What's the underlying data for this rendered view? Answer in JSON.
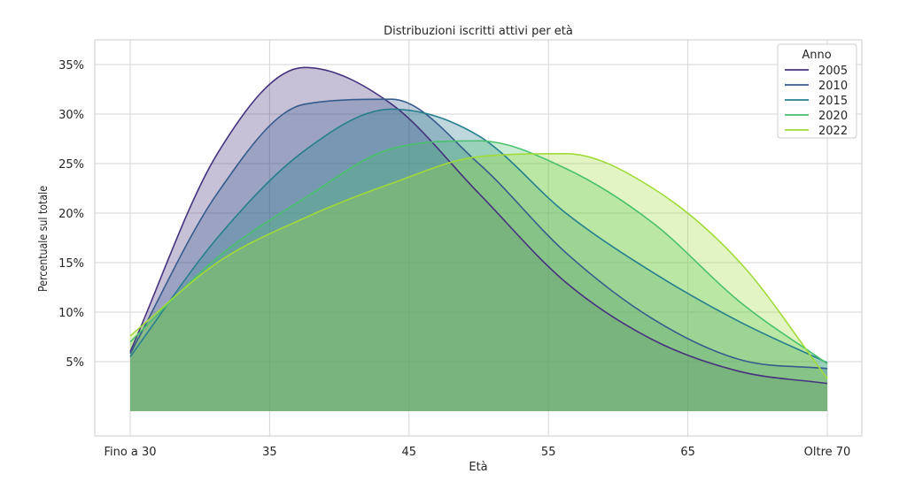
{
  "chart_data": {
    "type": "area",
    "title": "Distribuzioni iscritti attivi per età",
    "xlabel": "Età",
    "ylabel": "Percentuale sul totale",
    "x": [
      30,
      35,
      40,
      45,
      50,
      55,
      60,
      65,
      70
    ],
    "xlim": [
      30,
      70
    ],
    "ylim": [
      -2.5,
      37.5
    ],
    "x_ticks": [
      {
        "value": 30,
        "label": "Fino a 30"
      },
      {
        "value": 38,
        "label": "35"
      },
      {
        "value": 46,
        "label": "45"
      },
      {
        "value": 54,
        "label": "55"
      },
      {
        "value": 62,
        "label": "65"
      },
      {
        "value": 70,
        "label": "Oltre 70"
      }
    ],
    "y_ticks": [
      {
        "value": 5,
        "label": "5%"
      },
      {
        "value": 10,
        "label": "10%"
      },
      {
        "value": 15,
        "label": "15%"
      },
      {
        "value": 20,
        "label": "20%"
      },
      {
        "value": 25,
        "label": "25%"
      },
      {
        "value": 30,
        "label": "30%"
      },
      {
        "value": 35,
        "label": "35%"
      }
    ],
    "grid": true,
    "legend": {
      "title": "Anno",
      "position": "top-right"
    },
    "series": [
      {
        "name": "2005",
        "color": "#46327e",
        "values": [
          6.0,
          26.0,
          34.7,
          31.0,
          22.0,
          13.0,
          7.2,
          4.0,
          2.8
        ]
      },
      {
        "name": "2010",
        "color": "#365c8d",
        "values": [
          5.8,
          22.0,
          31.0,
          31.5,
          25.0,
          16.0,
          9.3,
          5.2,
          4.3
        ]
      },
      {
        "name": "2015",
        "color": "#277f8e",
        "values": [
          5.5,
          17.5,
          26.3,
          30.5,
          27.8,
          20.0,
          14.0,
          9.0,
          4.9
        ]
      },
      {
        "name": "2020",
        "color": "#4ac16d",
        "values": [
          7.0,
          15.5,
          21.5,
          26.5,
          27.3,
          24.5,
          19.0,
          11.0,
          4.8
        ]
      },
      {
        "name": "2022",
        "color": "#a0da39",
        "values": [
          7.6,
          15.0,
          19.5,
          23.0,
          25.7,
          26.0,
          22.5,
          15.0,
          3.3
        ]
      }
    ],
    "colors": {
      "grid": "#d5d5d5",
      "text": "#262626"
    }
  }
}
